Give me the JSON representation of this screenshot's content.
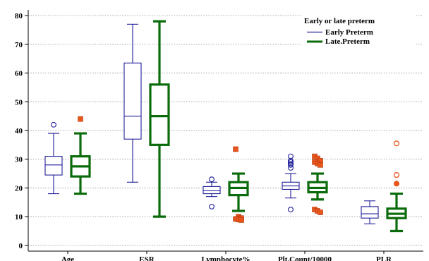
{
  "chart_data": {
    "type": "box",
    "title": "",
    "xlabel": "",
    "ylabel": "",
    "ylim": [
      -2,
      82
    ],
    "yticks": [
      0,
      10,
      20,
      30,
      40,
      50,
      60,
      70,
      80
    ],
    "grid": "horizontal-dotted",
    "legend_position": "top-right",
    "legend_title": "Early or late preterm",
    "categories": [
      "Age",
      "ESR",
      "Lymphocyte%",
      "Plt.Count/10000",
      "PLR"
    ],
    "series": [
      {
        "name": "Early Preterm",
        "color": "#1f1f99",
        "boxes": [
          {
            "category": "Age",
            "whisker_low": 18,
            "q1": 24.5,
            "median": 28,
            "q3": 31,
            "whisker_high": 39,
            "outliers": [
              42
            ]
          },
          {
            "category": "ESR",
            "whisker_low": 22,
            "q1": 37,
            "median": 45,
            "q3": 63.5,
            "whisker_high": 77,
            "outliers": []
          },
          {
            "category": "Lymphocyte%",
            "whisker_low": 17,
            "q1": 18,
            "median": 19,
            "q3": 20.5,
            "whisker_high": 22,
            "outliers": [
              23,
              13.5
            ]
          },
          {
            "category": "Plt.Count/10000",
            "whisker_low": 16.5,
            "q1": 19.5,
            "median": 20.7,
            "q3": 22,
            "whisker_high": 25,
            "outliers": [
              31,
              29.5,
              29,
              28.5,
              28,
              27,
              12.5
            ]
          },
          {
            "category": "PLR",
            "whisker_low": 7.5,
            "q1": 9.5,
            "median": 11,
            "q3": 13.5,
            "whisker_high": 15.5,
            "outliers": []
          }
        ]
      },
      {
        "name": "Late.Preterm",
        "color": "#0a6b0a",
        "outlier_color": "#e8561c",
        "boxes": [
          {
            "category": "Age",
            "whisker_low": 18,
            "q1": 24,
            "median": 27.5,
            "q3": 31,
            "whisker_high": 39,
            "outliers": [
              44
            ]
          },
          {
            "category": "ESR",
            "whisker_low": 10,
            "q1": 35,
            "median": 45,
            "q3": 56,
            "whisker_high": 78,
            "outliers": []
          },
          {
            "category": "Lymphocyte%",
            "whisker_low": 12,
            "q1": 17.5,
            "median": 20,
            "q3": 22,
            "whisker_high": 25,
            "outliers": [
              33.5,
              10,
              9.5,
              9.2,
              9,
              8.8
            ]
          },
          {
            "category": "Plt.Count/10000",
            "whisker_low": 16,
            "q1": 18.5,
            "median": 20,
            "q3": 22,
            "whisker_high": 25,
            "outliers": [
              31,
              30.3,
              29.5,
              29,
              28.5,
              28,
              12.5,
              12,
              11.5
            ]
          },
          {
            "category": "PLR",
            "whisker_low": 5,
            "q1": 9.5,
            "median": 11,
            "q3": 12.8,
            "whisker_high": 18,
            "outliers": [
              35.5,
              24.5,
              21.5
            ]
          }
        ]
      }
    ]
  }
}
